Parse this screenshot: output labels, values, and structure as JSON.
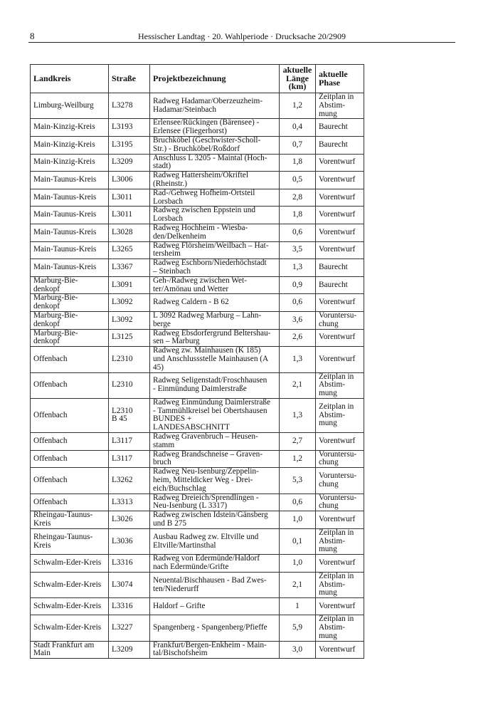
{
  "header": {
    "page": "8",
    "title": "Hessischer Landtag · 20. Wahlperiode · Drucksache 20/2909"
  },
  "table": {
    "header": [
      "Landkreis",
      "Straße",
      "Projektbezeichnung",
      "aktuelle\nLänge\n(km)",
      "aktuelle\nPhase"
    ],
    "rows": [
      [
        "Limburg-Weilburg",
        "L3278",
        "Radweg Hadamar/Oberzeuzheim-\nHadamar/Steinbach",
        "1,2",
        "Zeitplan in\nAbstim-\nmung"
      ],
      [
        "Main-Kinzig-Kreis",
        "L3193",
        "Erlensee/Rückingen (Bärensee) -\nErlensee (Fliegerhorst)",
        "0,4",
        "Baurecht"
      ],
      [
        "Main-Kinzig-Kreis",
        "L3195",
        "Bruchköbel (Geschwister-Scholl-\nStr.) - Bruchköbel/Roßdorf",
        "0,7",
        "Baurecht"
      ],
      [
        "Main-Kinzig-Kreis",
        "L3209",
        "Anschluss L 3205 - Maintal (Hoch-\nstadt)",
        "1,8",
        "Vorentwurf"
      ],
      [
        "Main-Taunus-Kreis",
        "L3006",
        "Radweg Hattersheim/Okriftel\n(Rheinstr.)",
        "0,5",
        "Vorentwurf"
      ],
      [
        "Main-Taunus-Kreis",
        "L3011",
        "Rad-/Gehweg Hofheim-Ortsteil\nLorsbach",
        "2,8",
        "Vorentwurf"
      ],
      [
        "Main-Taunus-Kreis",
        "L3011",
        "Radweg zwischen Eppstein und\nLorsbach",
        "1,8",
        "Vorentwurf"
      ],
      [
        "Main-Taunus-Kreis",
        "L3028",
        "Radweg Hochheim - Wiesba-\nden/Delkenheim",
        "0,6",
        "Vorentwurf"
      ],
      [
        "Main-Taunus-Kreis",
        "L3265",
        "Radweg Flörsheim/Weilbach – Hat-\ntersheim",
        "3,5",
        "Vorentwurf"
      ],
      [
        "Main-Taunus-Kreis",
        "L3367",
        "Radweg Eschborn/Niederhöchstadt\n– Steinbach",
        "1,3",
        "Baurecht"
      ],
      [
        "Marburg-Bie-\ndenkopf",
        "L3091",
        "Geh-/Radweg zwischen Wet-\nter/Amönau und Wetter",
        "0,9",
        "Baurecht"
      ],
      [
        "Marburg-Bie-\ndenkopf",
        "L3092",
        "Radweg Caldern - B 62",
        "0,6",
        "Vorentwurf"
      ],
      [
        "Marburg-Bie-\ndenkopf",
        "L3092",
        "L 3092 Radweg Marburg – Lahn-\nberge",
        "3,6",
        "Voruntersu-\nchung"
      ],
      [
        "Marburg-Bie-\ndenkopf",
        "L3125",
        "Radweg Ebsdorfergrund Beltershau-\nsen – Marburg",
        "2,6",
        "Vorentwurf"
      ],
      [
        "Offenbach",
        "L2310",
        "Radweg zw. Mainhausen (K 185)\nund Anschlussstelle Mainhausen (A\n45)",
        "1,3",
        "Vorentwurf"
      ],
      [
        "Offenbach",
        "L2310",
        "Radweg Seligenstadt/Froschhausen\n- Einmündung Daimlerstraße",
        "2,1",
        "Zeitplan in\nAbstim-\nmung"
      ],
      [
        "Offenbach",
        "L2310\nB 45",
        "Radweg Einmündung Daimlerstraße\n- Tammühlkreisel bei Obertshausen\nBUNDES +\nLANDESABSCHNITT",
        "1,3",
        "Zeitplan in\nAbstim-\nmung"
      ],
      [
        "Offenbach",
        "L3117",
        "Radweg Gravenbruch – Heusen-\nstamm",
        "2,7",
        "Vorentwurf"
      ],
      [
        "Offenbach",
        "L3117",
        "Radweg Brandschneise – Graven-\nbruch",
        "1,2",
        "Voruntersu-\nchung"
      ],
      [
        "Offenbach",
        "L3262",
        "Radweg Neu-Isenburg/Zeppelin-\nheim, Mitteldicker Weg - Drei-\neich/Buchschlag",
        "5,3",
        "Voruntersu-\nchung"
      ],
      [
        "Offenbach",
        "L3313",
        "Radweg Dreieich/Sprendlingen -\nNeu-Isenburg (L 3317)",
        "0,6",
        "Voruntersu-\nchung"
      ],
      [
        "Rheingau-Taunus-\nKreis",
        "L3026",
        "Radweg zwischen Idstein/Gänsberg\nund B 275",
        "1,0",
        "Vorentwurf"
      ],
      [
        "Rheingau-Taunus-\nKreis",
        "L3036",
        "Ausbau Radweg zw. Eltville und\nEltville/Martinsthal",
        "0,1",
        "Zeitplan in\nAbstim-\nmung"
      ],
      [
        "Schwalm-Eder-Kreis",
        "L3316",
        "Radweg von Edermünde/Haldorf\nnach Edermünde/Grifte",
        "1,0",
        "Vorentwurf"
      ],
      [
        "Schwalm-Eder-Kreis",
        "L3074",
        "Neuental/Bischhausen - Bad Zwes-\nten/Niederurff",
        "2,1",
        "Zeitplan in\nAbstim-\nmung"
      ],
      [
        "Schwalm-Eder-Kreis",
        "L3316",
        "Haldorf – Grifte",
        "1",
        "Vorentwurf"
      ],
      [
        "Schwalm-Eder-Kreis",
        "L3227",
        "Spangenberg - Spangenberg/Pfieffe",
        "5,9",
        "Zeitplan in\nAbstim-\nmung"
      ],
      [
        "Stadt Frankfurt am\nMain",
        "L3209",
        "Frankfurt/Bergen-Enkheim - Main-\ntal/Bischofsheim",
        "3,0",
        "Vorentwurf"
      ]
    ]
  }
}
